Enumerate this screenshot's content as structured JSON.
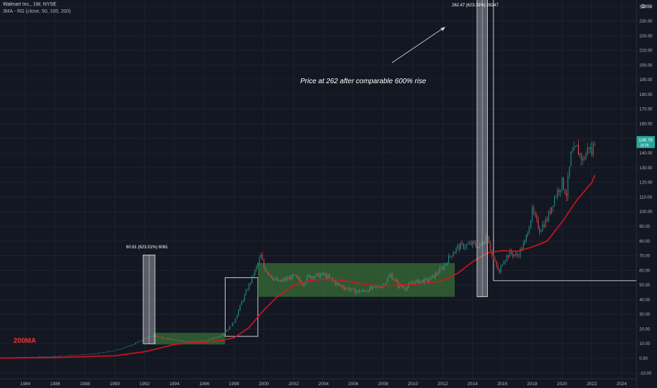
{
  "header": {
    "symbol_line": "Walmart Inc., 1W, NYSE",
    "indicator_line": "3MA - RG (close, 50, 100, 200)",
    "currency": "USD"
  },
  "price_tag": {
    "price": "148.76",
    "countdown": "1d 5h"
  },
  "label_200ma": "200MA",
  "annotation_main": "Price at 262 after comparable 600% rise",
  "measure_1992": "60.61 (623.51%) 6061",
  "measure_2014": "262.47 (623.33%) 26247",
  "colors": {
    "background": "#131722",
    "grid": "#1e222d",
    "ma_line": "#d6141f",
    "candle_up": "#26a69a",
    "candle_down": "#ef5350",
    "box_fill": "#3d7a3a",
    "price_tag": "#26a69a",
    "text": "#d1d4dc"
  },
  "chart_data": {
    "type": "candlestick",
    "title": "Walmart Inc., 1W, NYSE",
    "indicator": "3MA - RG (close, 50, 100, 200)",
    "y_scale": "linear",
    "ylim": [
      -10,
      250
    ],
    "xlim": [
      1982.3,
      2025.0
    ],
    "y_ticks": [
      "-10.00",
      "0.00",
      "10.00",
      "20.00",
      "30.00",
      "40.00",
      "50.00",
      "60.00",
      "70.00",
      "80.00",
      "90.00",
      "100.00",
      "110.00",
      "120.00",
      "130.00",
      "140.00",
      "150.00",
      "160.00",
      "170.00",
      "180.00",
      "190.00",
      "200.00",
      "210.00",
      "220.00",
      "230.00",
      "240.00"
    ],
    "x_ticks": [
      "1984",
      "1986",
      "1988",
      "1990",
      "1992",
      "1994",
      "1996",
      "1998",
      "2000",
      "2002",
      "2004",
      "2006",
      "2008",
      "2010",
      "2012",
      "2014",
      "2016",
      "2018",
      "2020",
      "2022",
      "2024"
    ],
    "price_series": [
      [
        1982.3,
        0.4
      ],
      [
        1984,
        0.7
      ],
      [
        1986,
        1.3
      ],
      [
        1987,
        2.2
      ],
      [
        1988,
        2.6
      ],
      [
        1989,
        3.6
      ],
      [
        1990,
        5.5
      ],
      [
        1991,
        8.5
      ],
      [
        1992,
        13.5
      ],
      [
        1992.6,
        15.5
      ],
      [
        1993,
        14.5
      ],
      [
        1994,
        12.5
      ],
      [
        1995,
        11.5
      ],
      [
        1996,
        11.8
      ],
      [
        1997,
        15
      ],
      [
        1997.6,
        20
      ],
      [
        1998,
        25
      ],
      [
        1998.5,
        38
      ],
      [
        1999,
        50
      ],
      [
        1999.5,
        62
      ],
      [
        1999.8,
        70
      ],
      [
        2000,
        62
      ],
      [
        2000.6,
        55
      ],
      [
        2001,
        52
      ],
      [
        2002,
        56
      ],
      [
        2002.6,
        51
      ],
      [
        2003,
        56
      ],
      [
        2004,
        57
      ],
      [
        2004.5,
        54
      ],
      [
        2005,
        50
      ],
      [
        2006,
        46
      ],
      [
        2006.5,
        45.5
      ],
      [
        2007,
        47
      ],
      [
        2008,
        50
      ],
      [
        2008.5,
        57
      ],
      [
        2009,
        50
      ],
      [
        2009.5,
        48
      ],
      [
        2010,
        52
      ],
      [
        2011,
        53
      ],
      [
        2011.5,
        57
      ],
      [
        2012,
        62
      ],
      [
        2012.5,
        70
      ],
      [
        2013,
        76
      ],
      [
        2014,
        78
      ],
      [
        2014.5,
        76
      ],
      [
        2015,
        85
      ],
      [
        2015.3,
        70
      ],
      [
        2015.8,
        58
      ],
      [
        2016,
        66
      ],
      [
        2016.5,
        72
      ],
      [
        2017,
        70
      ],
      [
        2017.5,
        79
      ],
      [
        2018,
        100
      ],
      [
        2018.5,
        88
      ],
      [
        2019,
        95
      ],
      [
        2019.5,
        110
      ],
      [
        2020,
        120
      ],
      [
        2020.3,
        112
      ],
      [
        2020.6,
        138
      ],
      [
        2021,
        143
      ],
      [
        2021.4,
        135
      ],
      [
        2021.8,
        145
      ],
      [
        2022,
        140
      ],
      [
        2022.2,
        148.76
      ]
    ],
    "ma200_series": [
      [
        1982.3,
        0.2
      ],
      [
        1986,
        0.6
      ],
      [
        1990,
        1.8
      ],
      [
        1992,
        4.5
      ],
      [
        1993,
        7
      ],
      [
        1994,
        9.5
      ],
      [
        1995,
        10.5
      ],
      [
        1996,
        11
      ],
      [
        1997,
        12
      ],
      [
        1998,
        14
      ],
      [
        1999,
        21
      ],
      [
        2000,
        33
      ],
      [
        2001,
        43
      ],
      [
        2002,
        50
      ],
      [
        2003,
        53
      ],
      [
        2004,
        54
      ],
      [
        2005,
        53.5
      ],
      [
        2006,
        52
      ],
      [
        2007,
        50
      ],
      [
        2008,
        49.5
      ],
      [
        2009,
        50
      ],
      [
        2010,
        50.5
      ],
      [
        2011,
        51.5
      ],
      [
        2012,
        53
      ],
      [
        2013,
        58
      ],
      [
        2014,
        66
      ],
      [
        2015,
        72
      ],
      [
        2016,
        73.5
      ],
      [
        2017,
        73
      ],
      [
        2018,
        76
      ],
      [
        2019,
        80
      ],
      [
        2020,
        93
      ],
      [
        2021,
        108
      ],
      [
        2022,
        120
      ],
      [
        2022.2,
        125
      ]
    ],
    "series": [
      {
        "name": "Walmart Inc., 1W, NYSE",
        "last": 148.76
      },
      {
        "name": "200MA"
      }
    ],
    "annotations": [
      {
        "text": "Price at 262 after comparable 600% rise"
      },
      {
        "text": "60.61 (623.51%) 6061",
        "x_range": [
          1991.9,
          1992.7
        ],
        "y_range": [
          10,
          70.6
        ]
      },
      {
        "text": "262.47 (623.33%) 26247",
        "x_range": [
          2014.3,
          2015.0
        ],
        "y_range": [
          42,
          262.47
        ]
      },
      {
        "text": "200MA"
      }
    ],
    "boxes": [
      {
        "kind": "green",
        "x_range": [
          1992.6,
          1997.4
        ],
        "y_range": [
          9.5,
          17.5
        ]
      },
      {
        "kind": "outline",
        "x_range": [
          1997.4,
          1999.6
        ],
        "y_range": [
          15,
          55
        ]
      },
      {
        "kind": "green",
        "x_range": [
          1999.6,
          2012.8
        ],
        "y_range": [
          42,
          65
        ]
      },
      {
        "kind": "outline",
        "x_range": [
          2015.4,
          2025.0
        ],
        "y_range": [
          53,
          262.47
        ]
      }
    ],
    "grid": true,
    "legend": "top-left"
  }
}
